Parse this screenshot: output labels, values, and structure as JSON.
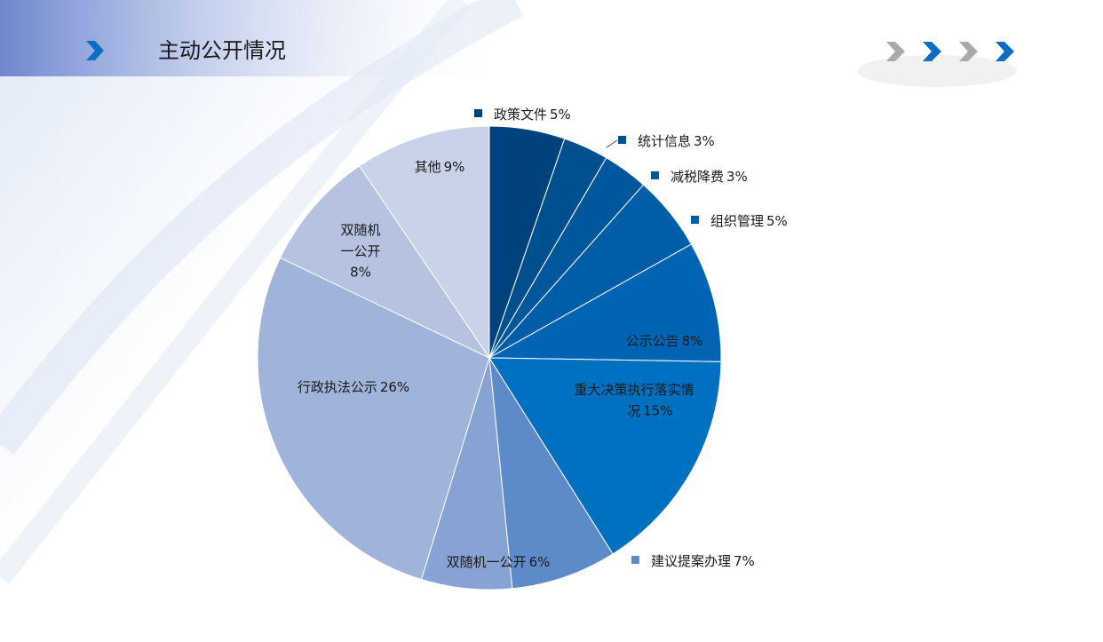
{
  "header": {
    "title": "主动公开情况"
  },
  "chart_data": {
    "type": "pie",
    "categories": [
      "政策文件",
      "统计信息",
      "减税降费",
      "组织管理",
      "公示公告",
      "重大决策执行落实情况",
      "建议提案办理",
      "双随机一公开",
      "行政执法公示",
      "双随机一公开",
      "其他"
    ],
    "values": [
      5,
      3,
      3,
      5,
      8,
      15,
      7,
      6,
      26,
      8,
      9
    ],
    "value_labels": [
      "5%",
      "3%",
      "3%",
      "5%",
      "8%",
      "15%",
      "7%",
      "6%",
      "26%",
      "8%",
      "9%"
    ],
    "colors": [
      "#00437c",
      "#004f8f",
      "#00579c",
      "#005ea9",
      "#0064b4",
      "#0070c0",
      "#5d8bc9",
      "#87a3d3",
      "#a0b3da",
      "#b5c3e1",
      "#c9d3e8"
    ]
  }
}
